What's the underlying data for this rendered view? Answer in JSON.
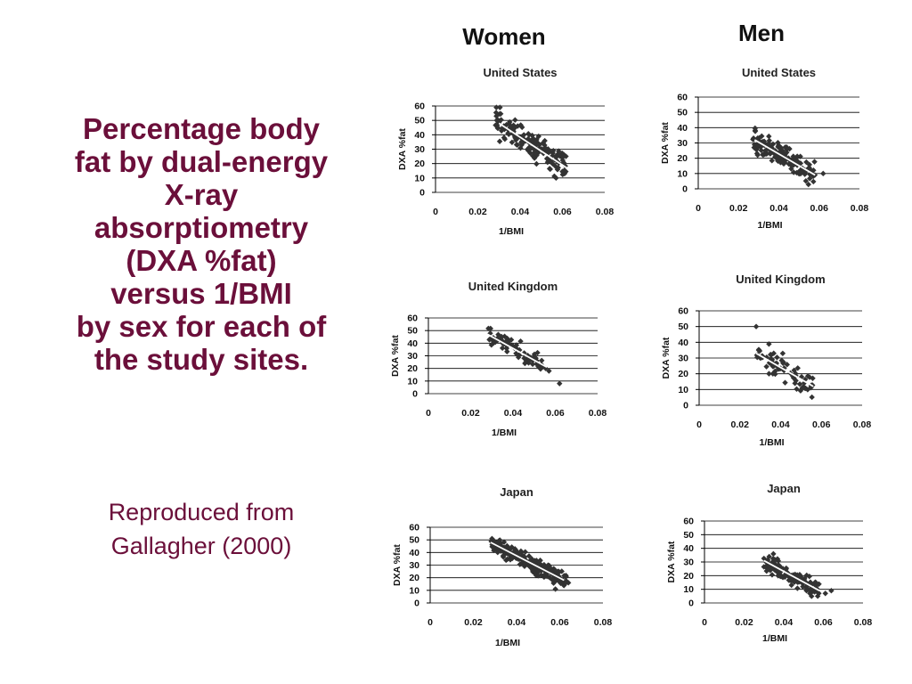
{
  "title_lines": [
    "Percentage body",
    "fat by dual-energy",
    "X-ray",
    "absorptiometry",
    "(DXA %fat)",
    "versus 1/BMI",
    "by sex for each of",
    "the study sites."
  ],
  "citation_lines": [
    "Reproduced from",
    "Gallagher (2000)"
  ],
  "columns": {
    "women": "Women",
    "men": "Men"
  },
  "colors": {
    "title": "#6b0f3a",
    "points": "#333333",
    "fit_line": "#ffffff",
    "grid": "#000000"
  },
  "chart_data": [
    {
      "id": "women-us",
      "type": "scatter",
      "sex": "Women",
      "title": "United States",
      "xlabel": "1/BMI",
      "ylabel": "DXA %fat",
      "xlim": [
        0,
        0.08
      ],
      "ylim": [
        0,
        60
      ],
      "xticks": [
        "0",
        "0.02",
        "0.04",
        "0.06",
        "0.08"
      ],
      "yticks": [
        "0",
        "10",
        "20",
        "30",
        "40",
        "50",
        "60"
      ],
      "grid": true,
      "trend_line": [
        [
          0.03,
          48
        ],
        [
          0.062,
          17
        ]
      ],
      "x_range": [
        0.028,
        0.062
      ],
      "y_spread": 7,
      "n": 150,
      "seed": 11,
      "outliers": [
        [
          0.061,
          13
        ],
        [
          0.057,
          10
        ]
      ]
    },
    {
      "id": "men-us",
      "type": "scatter",
      "sex": "Men",
      "title": "United States",
      "xlabel": "1/BMI",
      "ylabel": "DXA %fat",
      "xlim": [
        0,
        0.08
      ],
      "ylim": [
        0,
        60
      ],
      "xticks": [
        "0",
        "0.02",
        "0.04",
        "0.06",
        "0.08"
      ],
      "yticks": [
        "0",
        "10",
        "20",
        "30",
        "40",
        "50",
        "60"
      ],
      "grid": true,
      "trend_line": [
        [
          0.028,
          32
        ],
        [
          0.058,
          9
        ]
      ],
      "x_range": [
        0.027,
        0.058
      ],
      "y_spread": 6,
      "n": 150,
      "seed": 23,
      "outliers": [
        [
          0.062,
          10
        ],
        [
          0.057,
          9
        ]
      ]
    },
    {
      "id": "women-uk",
      "type": "scatter",
      "sex": "Women",
      "title": "United Kingdom",
      "xlabel": "1/BMI",
      "ylabel": "DXA %fat",
      "xlim": [
        0,
        0.08
      ],
      "ylim": [
        0,
        60
      ],
      "xticks": [
        "0",
        "0.02",
        "0.04",
        "0.06",
        "0.08"
      ],
      "yticks": [
        "0",
        "10",
        "20",
        "30",
        "40",
        "50",
        "60"
      ],
      "grid": true,
      "trend_line": [
        [
          0.028,
          47
        ],
        [
          0.056,
          21
        ]
      ],
      "x_range": [
        0.028,
        0.056
      ],
      "y_spread": 5,
      "n": 75,
      "seed": 37,
      "outliers": [
        [
          0.062,
          8
        ],
        [
          0.057,
          18
        ]
      ]
    },
    {
      "id": "men-uk",
      "type": "scatter",
      "sex": "Men",
      "title": "United Kingdom",
      "xlabel": "1/BMI",
      "ylabel": "DXA %fat",
      "xlim": [
        0,
        0.08
      ],
      "ylim": [
        0,
        60
      ],
      "xticks": [
        "0",
        "0.02",
        "0.04",
        "0.06",
        "0.08"
      ],
      "yticks": [
        "0",
        "10",
        "20",
        "30",
        "40",
        "50",
        "60"
      ],
      "grid": true,
      "trend_line": [
        [
          0.028,
          33
        ],
        [
          0.056,
          12
        ]
      ],
      "x_range": [
        0.028,
        0.056
      ],
      "y_spread": 6,
      "n": 70,
      "seed": 41,
      "outliers": [
        [
          0.028,
          50
        ],
        [
          0.055,
          12
        ]
      ]
    },
    {
      "id": "women-japan",
      "type": "scatter",
      "sex": "Women",
      "title": "Japan",
      "xlabel": "1/BMI",
      "ylabel": "DXA %fat",
      "xlim": [
        0,
        0.08
      ],
      "ylim": [
        0,
        60
      ],
      "xticks": [
        "0",
        "0.02",
        "0.04",
        "0.06",
        "0.08"
      ],
      "yticks": [
        "0",
        "10",
        "20",
        "30",
        "40",
        "50",
        "60"
      ],
      "grid": true,
      "trend_line": [
        [
          0.028,
          48
        ],
        [
          0.062,
          18
        ]
      ],
      "x_range": [
        0.028,
        0.063
      ],
      "y_spread": 5,
      "n": 220,
      "seed": 53,
      "outliers": [
        [
          0.064,
          16
        ],
        [
          0.058,
          11
        ]
      ]
    },
    {
      "id": "men-japan",
      "type": "scatter",
      "sex": "Men",
      "title": "Japan",
      "xlabel": "1/BMI",
      "ylabel": "DXA %fat",
      "xlim": [
        0,
        0.08
      ],
      "ylim": [
        0,
        60
      ],
      "xticks": [
        "0",
        "0.02",
        "0.04",
        "0.06",
        "0.08"
      ],
      "yticks": [
        "0",
        "10",
        "20",
        "30",
        "40",
        "50",
        "60"
      ],
      "grid": true,
      "trend_line": [
        [
          0.03,
          31
        ],
        [
          0.058,
          9
        ]
      ],
      "x_range": [
        0.03,
        0.058
      ],
      "y_spread": 5,
      "n": 130,
      "seed": 67,
      "outliers": [
        [
          0.064,
          9
        ],
        [
          0.061,
          7
        ]
      ]
    }
  ]
}
